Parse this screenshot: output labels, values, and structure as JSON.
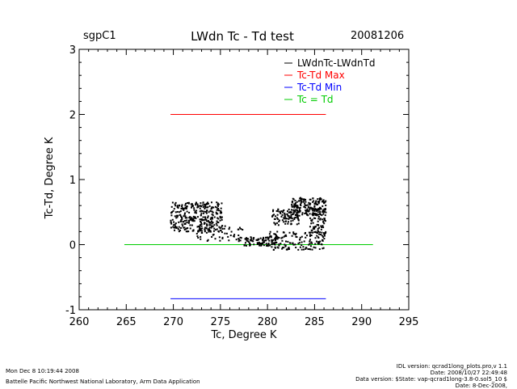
{
  "header": {
    "site": "sgpC1",
    "title": "LWdn Tc - Td test",
    "date": "20081206"
  },
  "footer": {
    "run_time": "Mon Dec  8 10:19:44 2008",
    "lab": "Battelle Pacific Northwest National Laboratory, Arm Data Application",
    "idl_version": "IDL version: qcrad1long_plots.pro,v 1.1",
    "code_date": "Date: 2008/10/27 22:49:48",
    "data_version": "Data version: $State: vap-qcrad1long-3.8-0.sol5_10 $",
    "data_date": "Date: 8-Dec-2008,"
  },
  "chart_data": {
    "type": "scatter",
    "title": "LWdn Tc - Td test",
    "xlabel": "Tc, Degree K",
    "ylabel": "Tc-Td, Degree K",
    "xlim": [
      260,
      295
    ],
    "ylim": [
      -1,
      3
    ],
    "xticks": [
      "260",
      "265",
      "270",
      "275",
      "280",
      "285",
      "290",
      "295"
    ],
    "yticks": [
      "-1",
      "0",
      "1",
      "2",
      "3"
    ],
    "legend_position": "top-right",
    "legend": [
      {
        "label": "LWdnTc-LWdnTd",
        "color": "#000000"
      },
      {
        "label": "Tc-Td Max",
        "color": "#ff0000"
      },
      {
        "label": "Tc-Td Min",
        "color": "#0000ff"
      },
      {
        "label": "Tc = Td",
        "color": "#00cc00"
      }
    ],
    "lines": [
      {
        "name": "Tc-Td Max",
        "color": "#ff0000",
        "x": [
          269.7,
          286.2
        ],
        "y": [
          2.0,
          2.0
        ]
      },
      {
        "name": "Tc-Td Min",
        "color": "#0000ff",
        "x": [
          269.7,
          286.2
        ],
        "y": [
          -0.83,
          -0.83
        ]
      },
      {
        "name": "Tc = Td",
        "color": "#00cc00",
        "x": [
          264.8,
          291.2
        ],
        "y": [
          0.0,
          0.0
        ]
      }
    ],
    "series": [
      {
        "name": "LWdnTc-LWdnTd",
        "color": "#000000",
        "clusters": [
          {
            "x": [
              269.7,
              275.2
            ],
            "y": [
              0.2,
              0.65
            ],
            "n": 320
          },
          {
            "x": [
              272.5,
              277.5
            ],
            "y": [
              0.05,
              0.3
            ],
            "n": 60
          },
          {
            "x": [
              277.5,
              281.0
            ],
            "y": [
              -0.02,
              0.12
            ],
            "n": 90
          },
          {
            "x": [
              280.5,
              283.5
            ],
            "y": [
              0.3,
              0.55
            ],
            "n": 90
          },
          {
            "x": [
              282.5,
              286.2
            ],
            "y": [
              0.45,
              0.72
            ],
            "n": 200
          },
          {
            "x": [
              280.0,
              286.2
            ],
            "y": [
              -0.08,
              0.2
            ],
            "n": 140
          },
          {
            "x": [
              284.5,
              286.2
            ],
            "y": [
              0.1,
              0.45
            ],
            "n": 60
          }
        ]
      }
    ]
  }
}
